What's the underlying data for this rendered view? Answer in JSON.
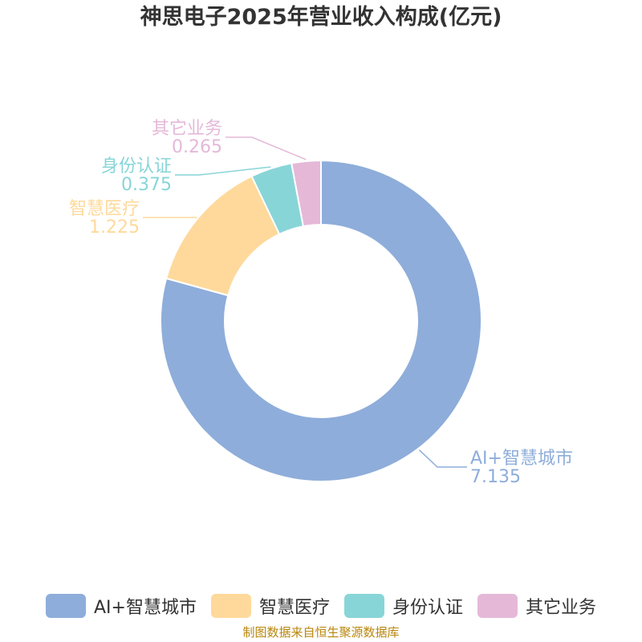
{
  "chart_data": {
    "type": "pie",
    "variant": "donut",
    "title": "神思电子2025年营业收入构成(亿元)",
    "categories": [
      "AI+智慧城市",
      "智慧医疗",
      "身份认证",
      "其它业务"
    ],
    "values": [
      7.135,
      1.225,
      0.375,
      0.265
    ],
    "value_labels": [
      "7.135",
      "1.225",
      "0.375",
      "0.265"
    ],
    "colors": [
      "#8eadda",
      "#fed99b",
      "#88d5d8",
      "#e5b8d8"
    ],
    "legend_position": "bottom",
    "start_angle": "top",
    "direction": "clockwise"
  },
  "source": "制图数据来自恒生聚源数据库"
}
